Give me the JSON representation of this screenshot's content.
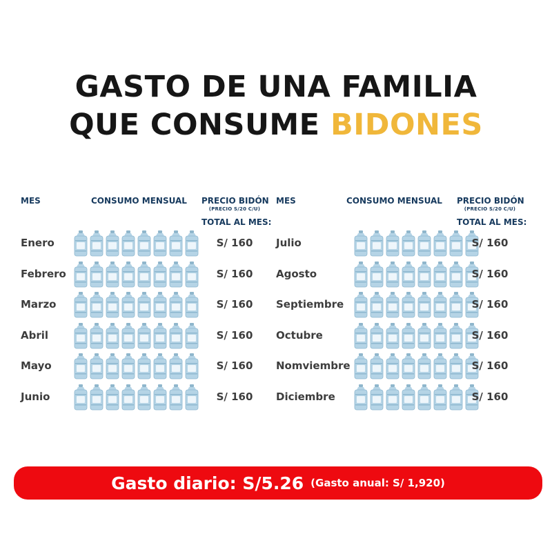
{
  "title": {
    "line1": "GASTO DE UNA FAMILIA",
    "line2_prefix": "QUE CONSUME ",
    "line2_accent": "BIDONES"
  },
  "headers": {
    "mes": "MES",
    "consumo": "CONSUMO MENSUAL",
    "precio": "PRECIO BIDÓN",
    "precio_sub": "(PRECIO S/20 C/U)",
    "total": "TOTAL AL MES:"
  },
  "bottles_per_month": 8,
  "months_left": [
    {
      "name": "Enero",
      "total": "S/ 160"
    },
    {
      "name": "Febrero",
      "total": "S/ 160"
    },
    {
      "name": "Marzo",
      "total": "S/ 160"
    },
    {
      "name": "Abril",
      "total": "S/ 160"
    },
    {
      "name": "Mayo",
      "total": "S/ 160"
    },
    {
      "name": "Junio",
      "total": "S/ 160"
    }
  ],
  "months_right": [
    {
      "name": "Julio",
      "total": "S/ 160"
    },
    {
      "name": "Agosto",
      "total": "S/ 160"
    },
    {
      "name": "Septiembre",
      "total": "S/ 160"
    },
    {
      "name": "Octubre",
      "total": "S/ 160"
    },
    {
      "name": "Nomviembre",
      "total": "S/ 160"
    },
    {
      "name": "Diciembre",
      "total": "S/ 160"
    }
  ],
  "banner": {
    "main": "Gasto diario: S/5.26",
    "secondary": "(Gasto anual: S/ 1,920)"
  },
  "colors": {
    "accent": "#f0b73a",
    "banner": "#ee0a10",
    "header_text": "#173a5e",
    "bottle": "#b5d4e6"
  },
  "icons": {
    "bottle": "water-jug-icon"
  }
}
